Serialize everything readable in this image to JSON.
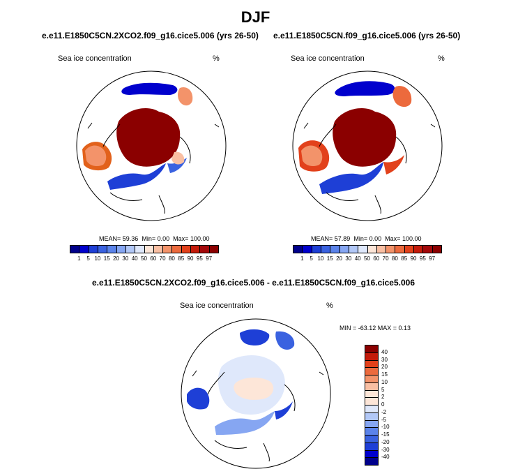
{
  "title": "DJF",
  "colors": {
    "ocean": "#ffffff",
    "ice_high": "#8b0000",
    "coast": "#000000"
  },
  "panels": [
    {
      "case": "e.e11.E1850C5CN.2XCO2.f09_g16.cice5.006 (yrs 26-50)",
      "variable": "Sea ice concentration",
      "units": "%",
      "mean_label": "MEAN=",
      "mean": "59.36",
      "min_label": "Min=",
      "min": "0.00",
      "max_label": "Max=",
      "max": "100.00"
    },
    {
      "case": "e.e11.E1850C5CN.f09_g16.cice5.006 (yrs 26-50)",
      "variable": "Sea ice concentration",
      "units": "%",
      "mean_label": "MEAN=",
      "mean": "57.89",
      "min_label": "Min=",
      "min": "0.00",
      "max_label": "Max=",
      "max": "100.00"
    }
  ],
  "colorbar_main": {
    "ticks": [
      "1",
      "5",
      "10",
      "15",
      "20",
      "30",
      "40",
      "50",
      "60",
      "70",
      "80",
      "85",
      "90",
      "95",
      "97"
    ],
    "colors": [
      "#00008b",
      "#0000cd",
      "#1e3fd6",
      "#3a62e0",
      "#5b83ea",
      "#86a6f2",
      "#b2c8f7",
      "#dfe8fb",
      "#fde6d8",
      "#f9bfa3",
      "#f3936a",
      "#ec6a3d",
      "#e2411b",
      "#c41b0b",
      "#a3090a",
      "#8b0000"
    ]
  },
  "diff": {
    "title": "e.e11.E1850C5CN.2XCO2.f09_g16.cice5.006 - e.e11.E1850C5CN.f09_g16.cice5.006",
    "variable": "Sea ice concentration",
    "units": "%",
    "minmax": "MIN = -63.12  MAX =   0.13",
    "colorbar_ticks": [
      "40",
      "30",
      "20",
      "15",
      "10",
      "5",
      "2",
      "0",
      "-2",
      "-5",
      "-10",
      "-15",
      "-20",
      "-30",
      "-40"
    ],
    "colorbar_colors": [
      "#8b0000",
      "#c41b0b",
      "#e2411b",
      "#ec6a3d",
      "#f3936a",
      "#f9bfa3",
      "#fde6d8",
      "#fde6d8",
      "#dfe8fb",
      "#b2c8f7",
      "#86a6f2",
      "#5b83ea",
      "#3a62e0",
      "#1e3fd6",
      "#0000cd",
      "#00008b"
    ]
  }
}
